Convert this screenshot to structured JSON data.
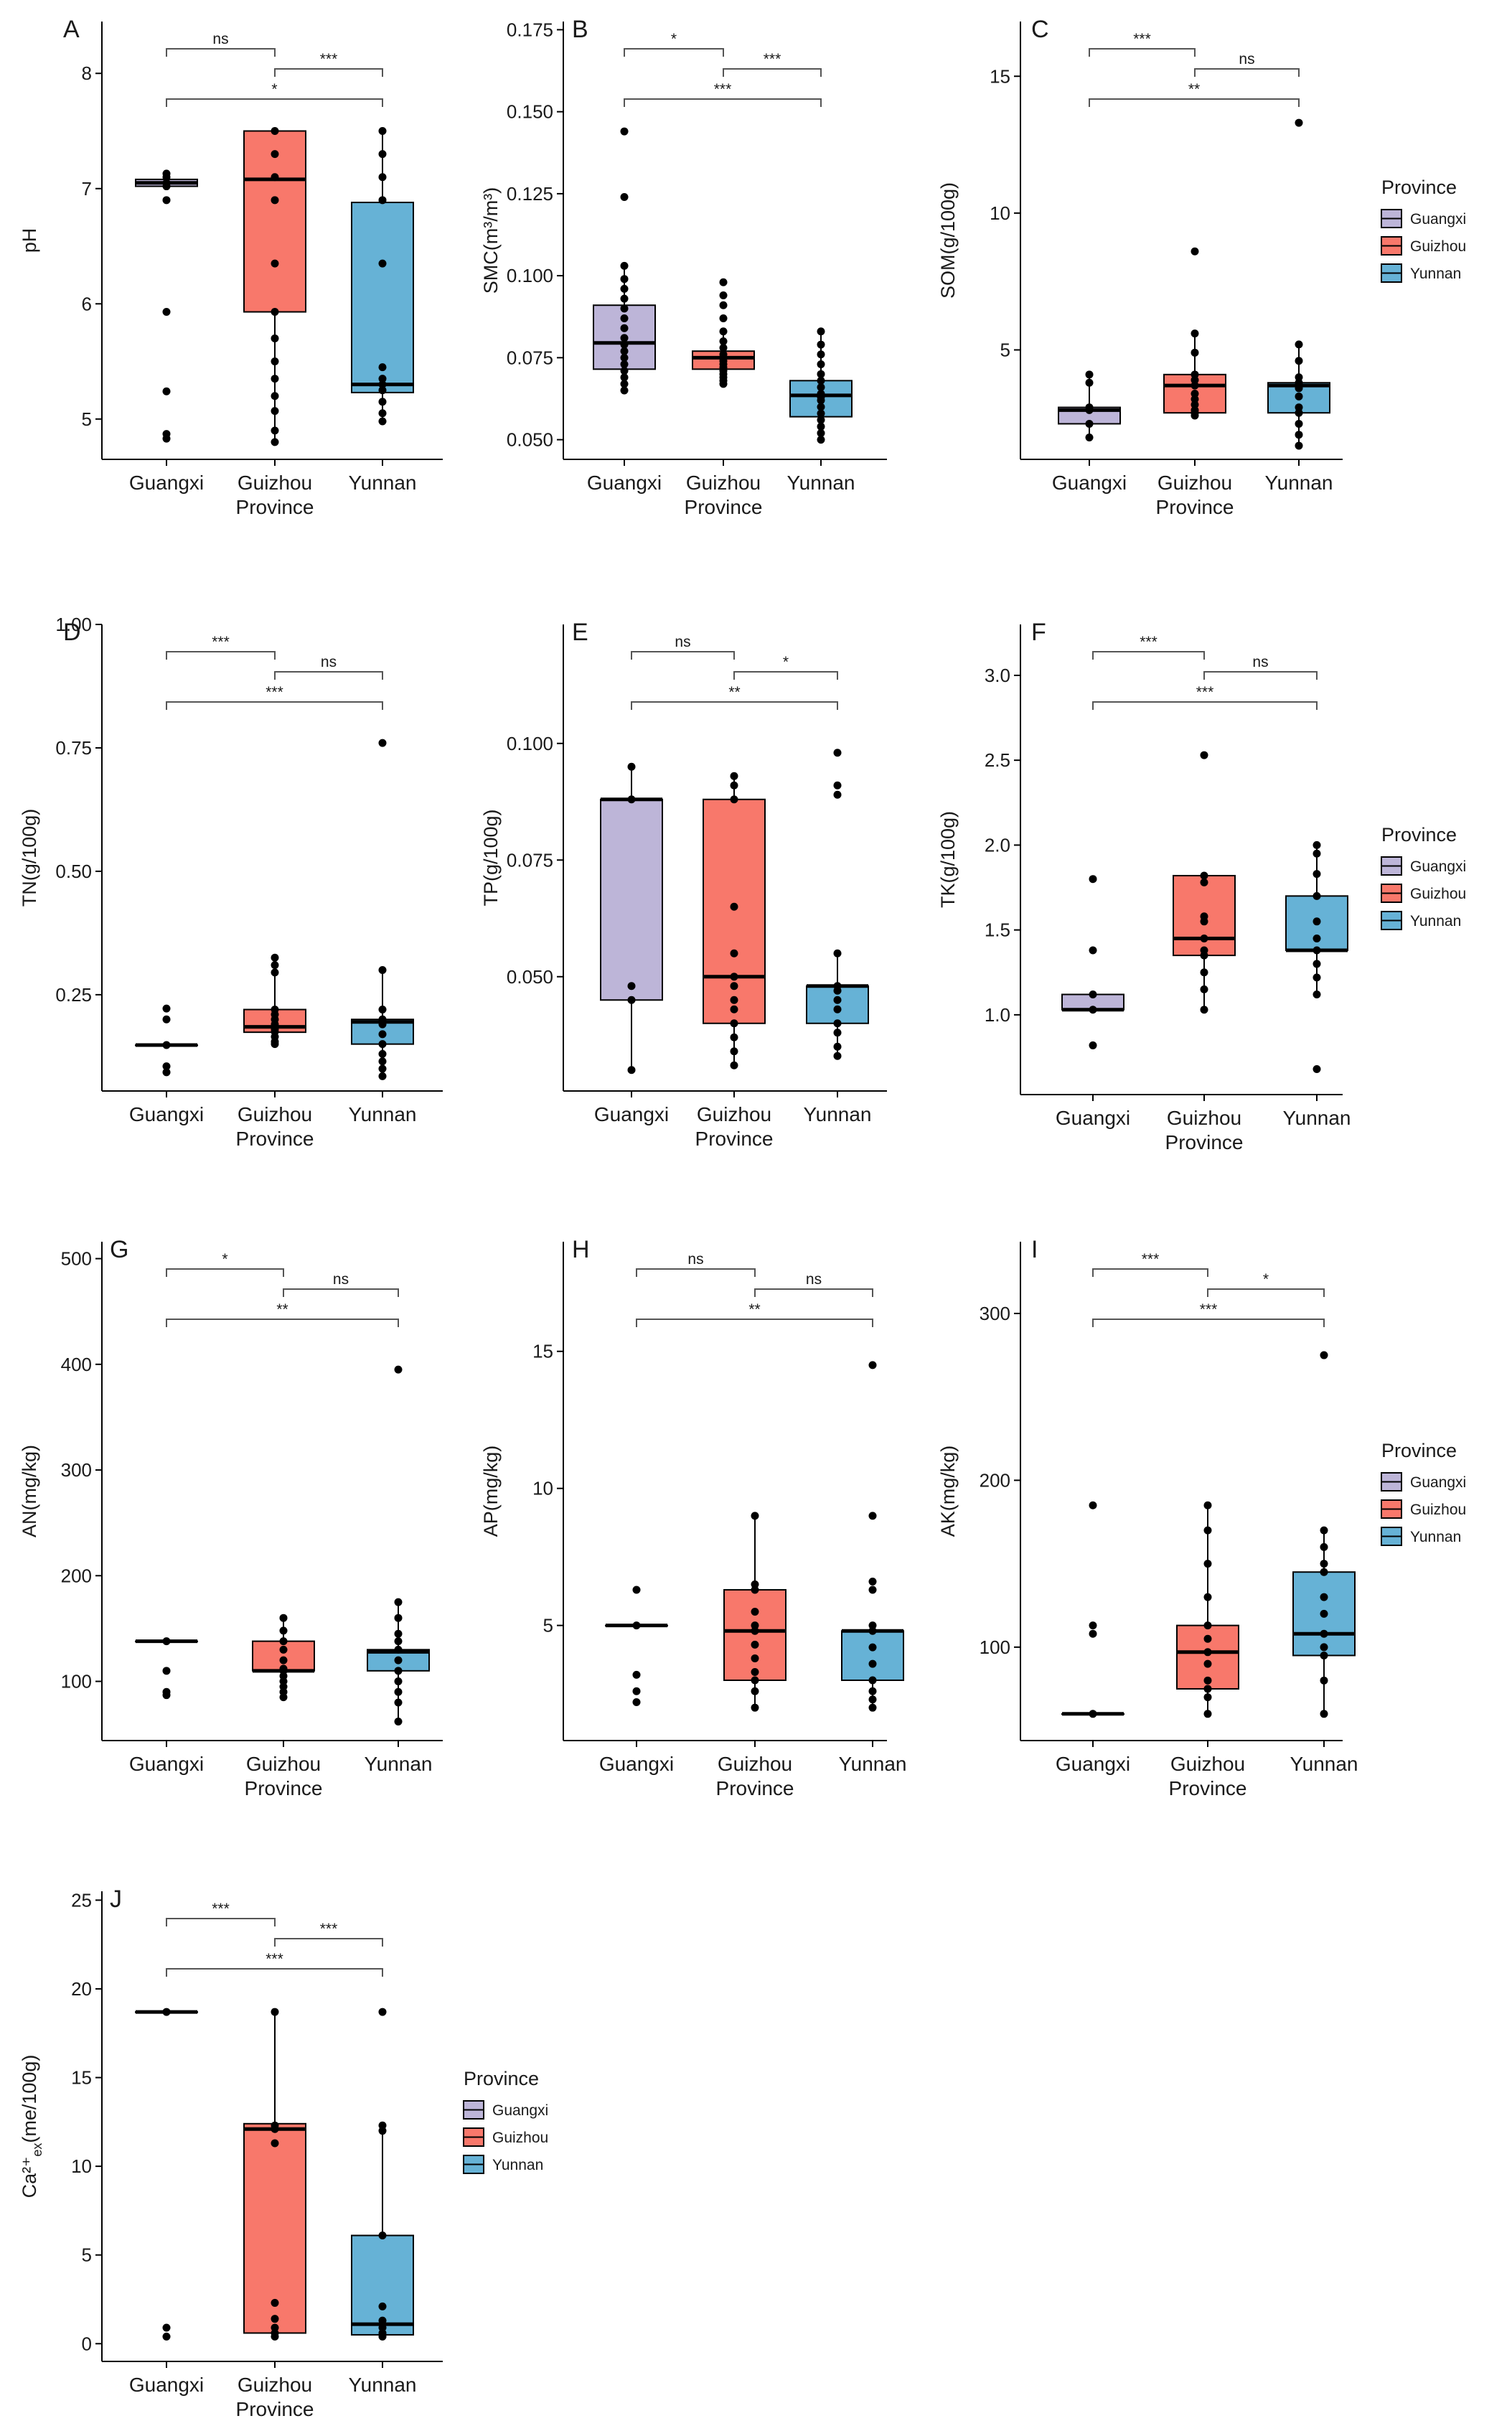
{
  "xlabel": "Province",
  "colors": {
    "Guangxi": "#bdb5d8",
    "Guizhou": "#f8786b",
    "Yunnan": "#66b2d6",
    "axis": "#000000",
    "bracket": "#555555"
  },
  "legend": {
    "title": "Province",
    "items": [
      "Guangxi",
      "Guizhou",
      "Yunnan"
    ]
  },
  "chart_data": [
    {
      "type": "box",
      "panel": "A",
      "ylabel": "pH",
      "ylim": [
        4.65,
        8.45
      ],
      "yticks": [
        5,
        6,
        7,
        8
      ],
      "categories": [
        "Guangxi",
        "Guizhou",
        "Yunnan"
      ],
      "boxes": [
        {
          "q1": 7.02,
          "median": 7.05,
          "q3": 7.08,
          "whisker_low": 7.02,
          "whisker_high": 7.08
        },
        {
          "q1": 5.93,
          "median": 7.08,
          "q3": 7.5,
          "whisker_low": 4.8,
          "whisker_high": 7.5
        },
        {
          "q1": 5.23,
          "median": 5.3,
          "q3": 6.88,
          "whisker_low": 4.95,
          "whisker_high": 7.5
        }
      ],
      "points": [
        [
          7.13,
          7.1,
          7.05,
          7.02,
          6.9,
          5.93,
          5.24,
          4.87,
          4.83
        ],
        [
          7.5,
          7.3,
          7.1,
          6.9,
          6.35,
          5.93,
          5.7,
          5.5,
          5.35,
          5.2,
          5.07,
          4.9,
          4.8
        ],
        [
          7.5,
          7.3,
          7.1,
          6.9,
          6.35,
          5.45,
          5.35,
          5.3,
          5.25,
          5.15,
          5.05,
          4.98
        ]
      ],
      "brackets": [
        {
          "from": 0,
          "to": 1,
          "label": "ns"
        },
        {
          "from": 1,
          "to": 2,
          "label": "***"
        },
        {
          "from": 0,
          "to": 2,
          "label": "*"
        }
      ]
    },
    {
      "type": "box",
      "panel": "B",
      "ylabel": "SMC(m³/m³)",
      "ylim": [
        0.044,
        0.1775
      ],
      "yticks": [
        0.05,
        0.075,
        0.1,
        0.125,
        0.15,
        0.175
      ],
      "yticklabels": [
        "0.050",
        "0.075",
        "0.100",
        "0.125",
        "0.150",
        "0.175"
      ],
      "categories": [
        "Guangxi",
        "Guizhou",
        "Yunnan"
      ],
      "boxes": [
        {
          "q1": 0.0715,
          "median": 0.0795,
          "q3": 0.091,
          "whisker_low": 0.065,
          "whisker_high": 0.103
        },
        {
          "q1": 0.0715,
          "median": 0.075,
          "q3": 0.077,
          "whisker_low": 0.067,
          "whisker_high": 0.083
        },
        {
          "q1": 0.057,
          "median": 0.0635,
          "q3": 0.068,
          "whisker_low": 0.05,
          "whisker_high": 0.083
        }
      ],
      "points": [
        [
          0.144,
          0.124,
          0.103,
          0.099,
          0.096,
          0.093,
          0.09,
          0.087,
          0.084,
          0.081,
          0.079,
          0.077,
          0.075,
          0.073,
          0.071,
          0.069,
          0.067,
          0.065
        ],
        [
          0.098,
          0.094,
          0.091,
          0.087,
          0.083,
          0.08,
          0.078,
          0.076,
          0.075,
          0.074,
          0.073,
          0.072,
          0.071,
          0.07,
          0.069,
          0.068,
          0.067
        ],
        [
          0.083,
          0.079,
          0.076,
          0.073,
          0.07,
          0.068,
          0.066,
          0.064,
          0.063,
          0.062,
          0.06,
          0.058,
          0.056,
          0.054,
          0.052,
          0.05
        ]
      ],
      "brackets": [
        {
          "from": 0,
          "to": 1,
          "label": "*"
        },
        {
          "from": 1,
          "to": 2,
          "label": "***"
        },
        {
          "from": 0,
          "to": 2,
          "label": "***"
        }
      ]
    },
    {
      "type": "box",
      "panel": "C",
      "ylabel": "SOM(g/100g)",
      "ylim": [
        1,
        17
      ],
      "yticks": [
        5,
        10,
        15
      ],
      "categories": [
        "Guangxi",
        "Guizhou",
        "Yunnan"
      ],
      "boxes": [
        {
          "q1": 2.3,
          "median": 2.8,
          "q3": 2.9,
          "whisker_low": 1.8,
          "whisker_high": 4.1
        },
        {
          "q1": 2.7,
          "median": 3.7,
          "q3": 4.1,
          "whisker_low": 2.6,
          "whisker_high": 5.6
        },
        {
          "q1": 2.7,
          "median": 3.7,
          "q3": 3.8,
          "whisker_low": 1.5,
          "whisker_high": 5.2
        }
      ],
      "points": [
        [
          4.1,
          3.8,
          2.9,
          2.8,
          2.3,
          1.8
        ],
        [
          8.6,
          5.6,
          4.9,
          4.1,
          3.9,
          3.7,
          3.4,
          3.2,
          3.0,
          2.8,
          2.7,
          2.6
        ],
        [
          13.3,
          5.2,
          4.6,
          4.0,
          3.8,
          3.6,
          3.3,
          2.9,
          2.7,
          2.3,
          1.9,
          1.5
        ]
      ],
      "brackets": [
        {
          "from": 0,
          "to": 1,
          "label": "***"
        },
        {
          "from": 1,
          "to": 2,
          "label": "ns"
        },
        {
          "from": 0,
          "to": 2,
          "label": "**"
        }
      ]
    },
    {
      "type": "box",
      "panel": "D",
      "ylabel": "TN(g/100g)",
      "ylim": [
        0.055,
        1.0
      ],
      "yticks": [
        0.25,
        0.5,
        0.75,
        1.0
      ],
      "yticklabels": [
        "0.25",
        "0.50",
        "0.75",
        "1.00"
      ],
      "categories": [
        "Guangxi",
        "Guizhou",
        "Yunnan"
      ],
      "boxes": [
        {
          "q1": 0.148,
          "median": 0.148,
          "q3": 0.148,
          "whisker_low": 0.148,
          "whisker_high": 0.148
        },
        {
          "q1": 0.174,
          "median": 0.185,
          "q3": 0.22,
          "whisker_low": 0.15,
          "whisker_high": 0.32
        },
        {
          "q1": 0.15,
          "median": 0.195,
          "q3": 0.2,
          "whisker_low": 0.085,
          "whisker_high": 0.3
        }
      ],
      "points": [
        [
          0.222,
          0.2,
          0.148,
          0.105,
          0.093
        ],
        [
          0.325,
          0.31,
          0.295,
          0.22,
          0.21,
          0.2,
          0.19,
          0.185,
          0.18,
          0.175,
          0.165,
          0.155,
          0.15
        ],
        [
          0.76,
          0.3,
          0.22,
          0.2,
          0.195,
          0.19,
          0.17,
          0.15,
          0.13,
          0.115,
          0.1,
          0.085
        ]
      ],
      "brackets": [
        {
          "from": 0,
          "to": 1,
          "label": "***"
        },
        {
          "from": 1,
          "to": 2,
          "label": "ns"
        },
        {
          "from": 0,
          "to": 2,
          "label": "***"
        }
      ]
    },
    {
      "type": "box",
      "panel": "E",
      "ylabel": "TP(g/100g)",
      "ylim": [
        0.0255,
        0.1255
      ],
      "yticks": [
        0.05,
        0.075,
        0.1
      ],
      "yticklabels": [
        "0.050",
        "0.075",
        "0.100"
      ],
      "categories": [
        "Guangxi",
        "Guizhou",
        "Yunnan"
      ],
      "boxes": [
        {
          "q1": 0.045,
          "median": 0.088,
          "q3": 0.088,
          "whisker_low": 0.03,
          "whisker_high": 0.095
        },
        {
          "q1": 0.04,
          "median": 0.05,
          "q3": 0.088,
          "whisker_low": 0.031,
          "whisker_high": 0.093
        },
        {
          "q1": 0.04,
          "median": 0.048,
          "q3": 0.048,
          "whisker_low": 0.033,
          "whisker_high": 0.055
        }
      ],
      "points": [
        [
          0.095,
          0.088,
          0.048,
          0.045,
          0.03
        ],
        [
          0.093,
          0.091,
          0.088,
          0.065,
          0.055,
          0.05,
          0.048,
          0.045,
          0.043,
          0.04,
          0.037,
          0.034,
          0.031
        ],
        [
          0.098,
          0.091,
          0.089,
          0.055,
          0.048,
          0.047,
          0.045,
          0.043,
          0.04,
          0.038,
          0.035,
          0.033
        ]
      ],
      "brackets": [
        {
          "from": 0,
          "to": 1,
          "label": "ns"
        },
        {
          "from": 1,
          "to": 2,
          "label": "*"
        },
        {
          "from": 0,
          "to": 2,
          "label": "**"
        }
      ]
    },
    {
      "type": "box",
      "panel": "F",
      "ylabel": "TK(g/100g)",
      "ylim": [
        0.53,
        3.3
      ],
      "yticks": [
        1.0,
        1.5,
        2.0,
        2.5,
        3.0
      ],
      "yticklabels": [
        "1.0",
        "1.5",
        "2.0",
        "2.5",
        "3.0"
      ],
      "categories": [
        "Guangxi",
        "Guizhou",
        "Yunnan"
      ],
      "boxes": [
        {
          "q1": 1.03,
          "median": 1.03,
          "q3": 1.12,
          "whisker_low": 1.03,
          "whisker_high": 1.12
        },
        {
          "q1": 1.35,
          "median": 1.45,
          "q3": 1.82,
          "whisker_low": 1.03,
          "whisker_high": 1.82
        },
        {
          "q1": 1.38,
          "median": 1.38,
          "q3": 1.7,
          "whisker_low": 1.12,
          "whisker_high": 2.0
        }
      ],
      "points": [
        [
          1.8,
          1.38,
          1.12,
          1.03,
          0.82
        ],
        [
          2.53,
          1.82,
          1.78,
          1.58,
          1.55,
          1.45,
          1.38,
          1.35,
          1.25,
          1.15,
          1.03
        ],
        [
          2.0,
          1.95,
          1.83,
          1.7,
          1.55,
          1.45,
          1.38,
          1.3,
          1.22,
          1.12,
          0.68
        ]
      ],
      "brackets": [
        {
          "from": 0,
          "to": 1,
          "label": "***"
        },
        {
          "from": 1,
          "to": 2,
          "label": "ns"
        },
        {
          "from": 0,
          "to": 2,
          "label": "***"
        }
      ]
    },
    {
      "type": "box",
      "panel": "G",
      "ylabel": "AN(mg/kg)",
      "ylim": [
        44,
        516
      ],
      "yticks": [
        100,
        200,
        300,
        400,
        500
      ],
      "categories": [
        "Guangxi",
        "Guizhou",
        "Yunnan"
      ],
      "boxes": [
        {
          "q1": 138,
          "median": 138,
          "q3": 138,
          "whisker_low": 138,
          "whisker_high": 138
        },
        {
          "q1": 110,
          "median": 110,
          "q3": 138,
          "whisker_low": 85,
          "whisker_high": 160
        },
        {
          "q1": 110,
          "median": 128,
          "q3": 130,
          "whisker_low": 62,
          "whisker_high": 175
        }
      ],
      "points": [
        [
          138,
          110,
          90,
          87
        ],
        [
          160,
          148,
          138,
          130,
          120,
          112,
          110,
          105,
          100,
          95,
          90,
          85
        ],
        [
          395,
          175,
          160,
          145,
          138,
          130,
          120,
          110,
          100,
          90,
          80,
          62
        ]
      ],
      "brackets": [
        {
          "from": 0,
          "to": 1,
          "label": "*"
        },
        {
          "from": 1,
          "to": 2,
          "label": "ns"
        },
        {
          "from": 0,
          "to": 2,
          "label": "**"
        }
      ]
    },
    {
      "type": "box",
      "panel": "H",
      "ylabel": "AP(mg/kg)",
      "ylim": [
        0.8,
        19
      ],
      "yticks": [
        5,
        10,
        15
      ],
      "categories": [
        "Guangxi",
        "Guizhou",
        "Yunnan"
      ],
      "boxes": [
        {
          "q1": 5.0,
          "median": 5.0,
          "q3": 5.0,
          "whisker_low": 5.0,
          "whisker_high": 5.0
        },
        {
          "q1": 3.0,
          "median": 4.8,
          "q3": 6.3,
          "whisker_low": 2.0,
          "whisker_high": 9.0
        },
        {
          "q1": 3.0,
          "median": 4.8,
          "q3": 4.8,
          "whisker_low": 2.0,
          "whisker_high": 4.8
        }
      ],
      "points": [
        [
          6.3,
          5.0,
          3.2,
          2.6,
          2.2
        ],
        [
          9.0,
          6.5,
          6.3,
          5.5,
          5.0,
          4.8,
          4.3,
          3.8,
          3.3,
          3.0,
          2.6,
          2.0
        ],
        [
          14.5,
          9.0,
          6.6,
          6.3,
          5.0,
          4.8,
          4.2,
          3.6,
          3.0,
          2.6,
          2.3,
          2.0
        ]
      ],
      "brackets": [
        {
          "from": 0,
          "to": 1,
          "label": "ns"
        },
        {
          "from": 1,
          "to": 2,
          "label": "ns"
        },
        {
          "from": 0,
          "to": 2,
          "label": "**"
        }
      ]
    },
    {
      "type": "box",
      "panel": "I",
      "ylabel": "AK(mg/kg)",
      "ylim": [
        44,
        343
      ],
      "yticks": [
        100,
        200,
        300
      ],
      "categories": [
        "Guangxi",
        "Guizhou",
        "Yunnan"
      ],
      "boxes": [
        {
          "q1": 60,
          "median": 60,
          "q3": 60,
          "whisker_low": 60,
          "whisker_high": 60
        },
        {
          "q1": 75,
          "median": 97,
          "q3": 113,
          "whisker_low": 60,
          "whisker_high": 185
        },
        {
          "q1": 95,
          "median": 108,
          "q3": 145,
          "whisker_low": 60,
          "whisker_high": 170
        }
      ],
      "points": [
        [
          185,
          113,
          108,
          60
        ],
        [
          185,
          170,
          150,
          130,
          113,
          105,
          97,
          90,
          80,
          75,
          70,
          60
        ],
        [
          275,
          170,
          160,
          150,
          145,
          130,
          120,
          108,
          100,
          95,
          80,
          60
        ]
      ],
      "brackets": [
        {
          "from": 0,
          "to": 1,
          "label": "***"
        },
        {
          "from": 1,
          "to": 2,
          "label": "*"
        },
        {
          "from": 0,
          "to": 2,
          "label": "***"
        }
      ]
    },
    {
      "type": "box",
      "panel": "J",
      "ylabel": "Ca²⁺",
      "ylabel_sub": "ex",
      "ylabel_tail": "(me/100g)",
      "ylim": [
        -1,
        25.5
      ],
      "yticks": [
        0,
        5,
        10,
        15,
        20,
        25
      ],
      "categories": [
        "Guangxi",
        "Guizhou",
        "Yunnan"
      ],
      "boxes": [
        {
          "q1": 18.7,
          "median": 18.7,
          "q3": 18.7,
          "whisker_low": 18.7,
          "whisker_high": 18.7
        },
        {
          "q1": 0.6,
          "median": 12.1,
          "q3": 12.4,
          "whisker_low": 0.6,
          "whisker_high": 18.7
        },
        {
          "q1": 0.5,
          "median": 1.1,
          "q3": 6.1,
          "whisker_low": 0.5,
          "whisker_high": 12.3
        }
      ],
      "points": [
        [
          18.7,
          0.9,
          0.4
        ],
        [
          18.7,
          12.3,
          12.1,
          11.3,
          2.3,
          1.4,
          0.9,
          0.6,
          0.4
        ],
        [
          18.7,
          12.3,
          12.0,
          6.1,
          2.1,
          1.3,
          0.9,
          0.6,
          0.4
        ]
      ],
      "brackets": [
        {
          "from": 0,
          "to": 1,
          "label": "***"
        },
        {
          "from": 1,
          "to": 2,
          "label": "***"
        },
        {
          "from": 0,
          "to": 2,
          "label": "***"
        }
      ]
    }
  ]
}
